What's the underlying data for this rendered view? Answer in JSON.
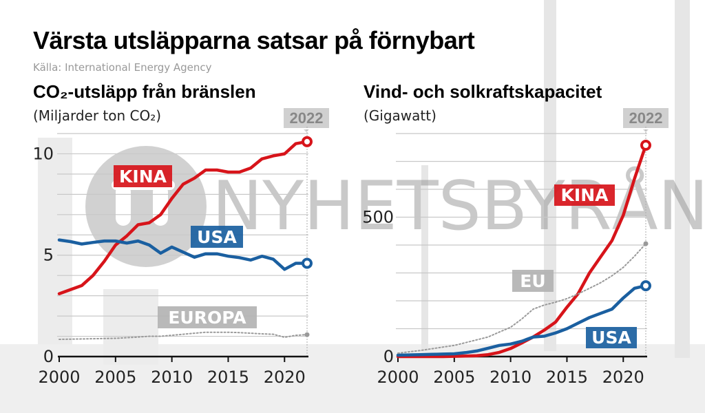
{
  "title": "Värsta utsläpparna satsar på förnybart",
  "source": "Källa: International Energy Agency",
  "watermark": "NYHETSBYRÅN",
  "colors": {
    "kina": "#d7141a",
    "usa": "#1a5fa0",
    "other": "#b3b3b3",
    "badge": "#d0d0d0"
  },
  "chart_data": [
    {
      "type": "line",
      "title": "CO₂-utsläpp från bränslen",
      "subtitle": "(Miljarder ton CO₂)",
      "highlight_year": "2022",
      "x": [
        2000,
        2001,
        2002,
        2003,
        2004,
        2005,
        2006,
        2007,
        2008,
        2009,
        2010,
        2011,
        2012,
        2013,
        2014,
        2015,
        2016,
        2017,
        2018,
        2019,
        2020,
        2021,
        2022
      ],
      "xticks": [
        "2000",
        "2005",
        "2010",
        "2015",
        "2020"
      ],
      "yticks": [
        "0",
        "5",
        "10"
      ],
      "ylim": [
        0,
        11
      ],
      "grid": true,
      "series": [
        {
          "name": "KINA",
          "color": "#d7141a",
          "style": "solid",
          "values": [
            3.1,
            3.3,
            3.5,
            4.0,
            4.7,
            5.5,
            5.95,
            6.5,
            6.6,
            7.0,
            7.8,
            8.5,
            8.8,
            9.2,
            9.2,
            9.1,
            9.1,
            9.3,
            9.75,
            9.9,
            10.0,
            10.5,
            10.6
          ]
        },
        {
          "name": "USA",
          "color": "#1a5fa0",
          "style": "solid",
          "values": [
            5.75,
            5.67,
            5.55,
            5.63,
            5.7,
            5.7,
            5.6,
            5.7,
            5.5,
            5.1,
            5.4,
            5.15,
            4.9,
            5.07,
            5.07,
            4.95,
            4.88,
            4.76,
            4.95,
            4.8,
            4.3,
            4.6,
            4.6
          ]
        },
        {
          "name": "EUROPA",
          "color": "#999999",
          "style": "dotted",
          "values": [
            0.85,
            0.86,
            0.87,
            0.88,
            0.89,
            0.9,
            0.93,
            0.96,
            1.0,
            1.0,
            1.05,
            1.1,
            1.15,
            1.2,
            1.2,
            1.2,
            1.18,
            1.15,
            1.12,
            1.1,
            0.95,
            1.05,
            1.08
          ]
        }
      ]
    },
    {
      "type": "line",
      "title": "Vind- och solkraftskapacitet",
      "subtitle": "(Gigawatt)",
      "highlight_year": "2022",
      "x": [
        2000,
        2001,
        2002,
        2003,
        2004,
        2005,
        2006,
        2007,
        2008,
        2009,
        2010,
        2011,
        2012,
        2013,
        2014,
        2015,
        2016,
        2017,
        2018,
        2019,
        2020,
        2021,
        2022
      ],
      "xticks": [
        "2000",
        "2005",
        "2010",
        "2015",
        "2020"
      ],
      "yticks": [
        "0",
        "500"
      ],
      "ylim": [
        0,
        800
      ],
      "grid": true,
      "series": [
        {
          "name": "KINA",
          "color": "#d7141a",
          "style": "solid",
          "values": [
            0,
            0,
            0,
            0,
            0,
            1,
            2,
            3,
            7,
            15,
            29,
            49,
            70,
            95,
            124,
            177,
            226,
            300,
            358,
            416,
            507,
            638,
            758
          ]
        },
        {
          "name": "USA",
          "color": "#1a5fa0",
          "style": "solid",
          "values": [
            5,
            6,
            7,
            8,
            9,
            10,
            14,
            20,
            30,
            40,
            45,
            55,
            70,
            73,
            85,
            100,
            120,
            140,
            155,
            170,
            210,
            245,
            254
          ]
        },
        {
          "name": "EU",
          "color": "#999999",
          "style": "dotted",
          "values": [
            12,
            17,
            22,
            28,
            34,
            40,
            50,
            60,
            70,
            88,
            105,
            135,
            170,
            185,
            195,
            208,
            225,
            245,
            265,
            290,
            320,
            360,
            405
          ]
        }
      ]
    }
  ]
}
